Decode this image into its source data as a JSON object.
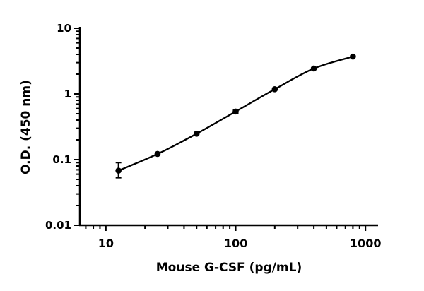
{
  "chart_data": {
    "type": "scatter",
    "title": "",
    "xlabel": "Mouse G-CSF (pg/mL)",
    "ylabel": "O.D. (450 nm)",
    "x_scale": "log",
    "y_scale": "log",
    "xlim": [
      6.3,
      1250
    ],
    "ylim": [
      0.01,
      10
    ],
    "x_ticks": [
      {
        "value": 10,
        "label": "10"
      },
      {
        "value": 100,
        "label": "100"
      },
      {
        "value": 1000,
        "label": "1000"
      }
    ],
    "y_ticks": [
      {
        "value": 0.01,
        "label": "0.01"
      },
      {
        "value": 0.1,
        "label": "0.1"
      },
      {
        "value": 1,
        "label": "1"
      },
      {
        "value": 10,
        "label": "10"
      }
    ],
    "grid": false,
    "series": [
      {
        "x": [
          12.5,
          25,
          50,
          100,
          200,
          400,
          800
        ],
        "y": [
          0.068,
          0.122,
          0.248,
          0.54,
          1.18,
          2.44,
          3.71
        ],
        "error_low": [
          0.053,
          null,
          null,
          0.51,
          null,
          null,
          null
        ],
        "error_high": [
          0.09,
          null,
          null,
          0.57,
          null,
          null,
          null
        ],
        "fit_curve": true,
        "color": "#000000"
      }
    ]
  }
}
